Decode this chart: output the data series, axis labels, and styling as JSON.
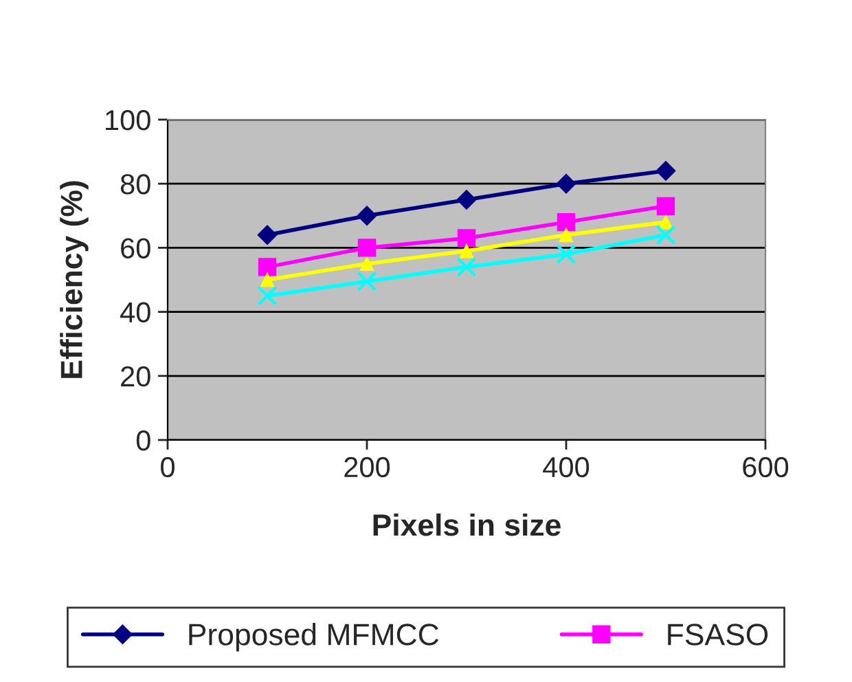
{
  "chart_data": {
    "type": "line",
    "xlabel": "Pixels in size",
    "ylabel": "Efficiency (%)",
    "x": [
      100,
      200,
      300,
      400,
      500
    ],
    "series": [
      {
        "name": "Proposed MFMCC",
        "color": "#000080",
        "marker": "diamond",
        "values": [
          64,
          70,
          75,
          80,
          84
        ]
      },
      {
        "name": "FSASO",
        "color": "#ff00ff",
        "marker": "square",
        "values": [
          54,
          60,
          63,
          68,
          73
        ]
      },
      {
        "color": "#ffff00",
        "marker": "triangle",
        "values": [
          50,
          55,
          59,
          64,
          68
        ]
      },
      {
        "color": "#00ffff",
        "marker": "cross",
        "values": [
          45,
          49.5,
          54,
          58,
          64
        ]
      }
    ],
    "xlim": [
      0,
      600
    ],
    "xticks": [
      0,
      200,
      400,
      600
    ],
    "ylim": [
      0,
      100
    ],
    "yticks": [
      0,
      20,
      40,
      60,
      80,
      100
    ],
    "grid": "y",
    "legend": "bottom"
  }
}
